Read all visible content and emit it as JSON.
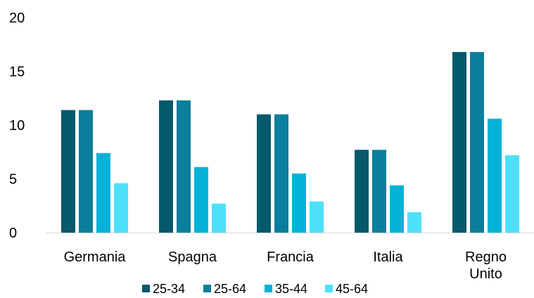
{
  "chart_data": {
    "type": "bar",
    "title": "",
    "xlabel": "",
    "ylabel": "",
    "ylim": [
      0,
      20
    ],
    "yticks": [
      0,
      5,
      10,
      15,
      20
    ],
    "grid": false,
    "legend_position": "bottom",
    "categories": [
      [
        "Germania"
      ],
      [
        "Spagna"
      ],
      [
        "Francia"
      ],
      [
        "Italia"
      ],
      [
        "Regno",
        "Unito"
      ]
    ],
    "series": [
      {
        "name": "25-34",
        "color": "#04596b",
        "values": [
          11.4,
          12.3,
          11.0,
          7.7,
          16.8
        ]
      },
      {
        "name": "25-64",
        "color": "#0a7f9b",
        "values": [
          11.4,
          12.3,
          11.0,
          7.7,
          16.8
        ]
      },
      {
        "name": "35-44",
        "color": "#06b2d8",
        "values": [
          7.4,
          6.1,
          5.5,
          4.4,
          10.6
        ]
      },
      {
        "name": "45-64",
        "color": "#4ee0fb",
        "values": [
          4.6,
          2.7,
          2.9,
          1.9,
          7.2
        ]
      }
    ]
  }
}
